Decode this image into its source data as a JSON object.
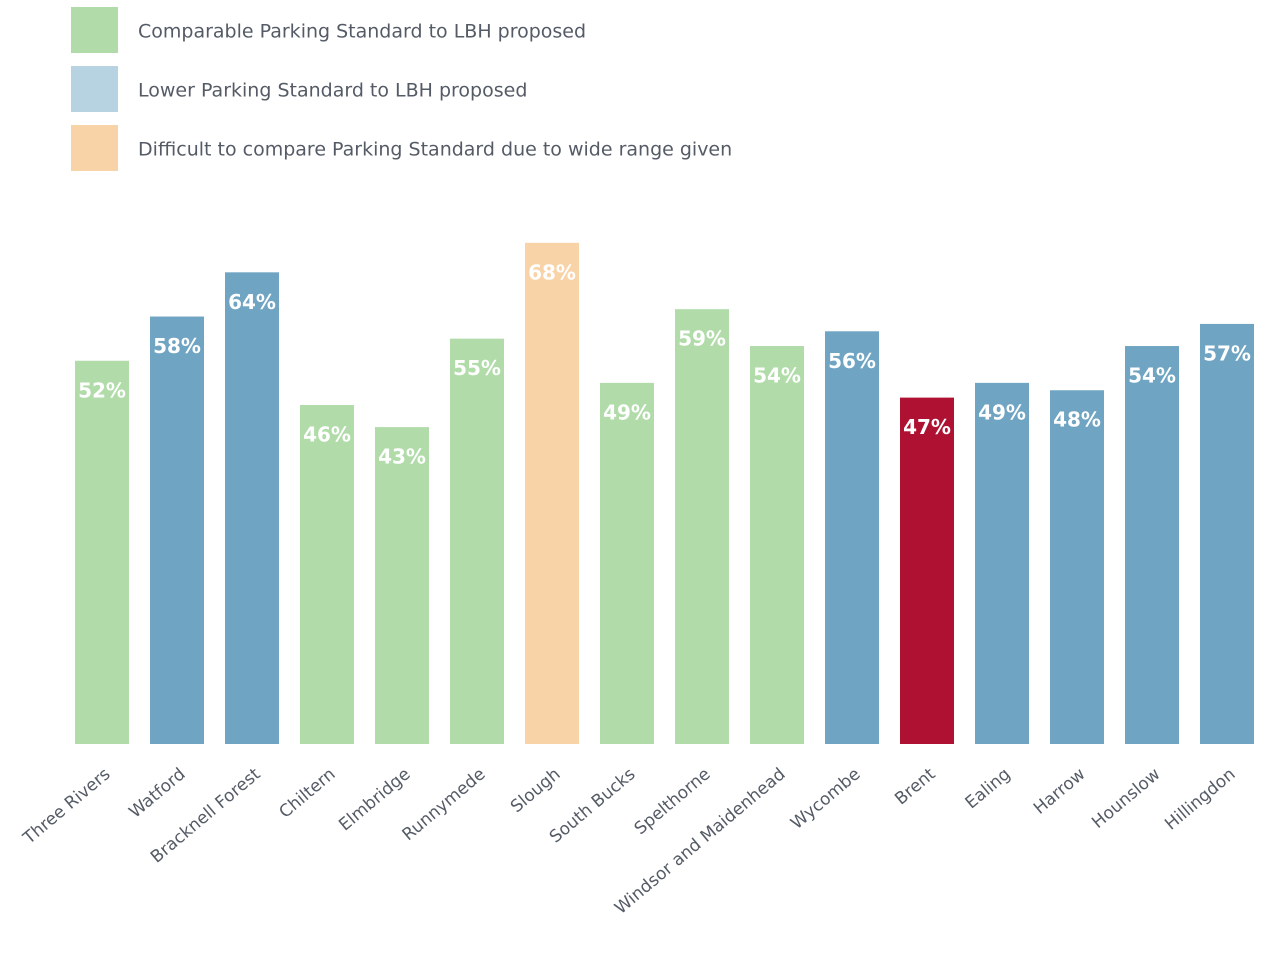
{
  "chart_data": {
    "type": "bar",
    "legend": [
      {
        "name": "Comparable Parking Standard to LBH proposed",
        "color": "#b1dcaa"
      },
      {
        "name": "Lower Parking Standard to LBH proposed",
        "color": "#b7d3e2"
      },
      {
        "name": "Difficult to compare Parking Standard due to wide range given",
        "color": "#f9d3a8"
      }
    ],
    "categories": [
      "Three Rivers",
      "Watford",
      "Bracknell Forest",
      "Chiltern",
      "Elmbridge",
      "Runnymede",
      "Slough",
      "South Bucks",
      "Spelthorne",
      "Windsor and Maidenhead",
      "Wycombe",
      "Brent",
      "Ealing",
      "Harrow",
      "Hounslow",
      "Hillingdon"
    ],
    "values": [
      52,
      58,
      64,
      46,
      43,
      55,
      68,
      49,
      59,
      54,
      56,
      47,
      49,
      48,
      54,
      57
    ],
    "value_labels": [
      "52%",
      "58%",
      "64%",
      "46%",
      "43%",
      "55%",
      "68%",
      "49%",
      "59%",
      "54%",
      "56%",
      "47%",
      "49%",
      "48%",
      "54%",
      "57%"
    ],
    "colors": [
      "#b1dcaa",
      "#6fa4c2",
      "#6fa4c2",
      "#b1dcaa",
      "#b1dcaa",
      "#b1dcaa",
      "#f9d3a8",
      "#b1dcaa",
      "#b1dcaa",
      "#b1dcaa",
      "#6fa4c2",
      "#ae1131",
      "#6fa4c2",
      "#6fa4c2",
      "#6fa4c2",
      "#6fa4c2"
    ],
    "ylim": [
      0,
      100
    ]
  }
}
